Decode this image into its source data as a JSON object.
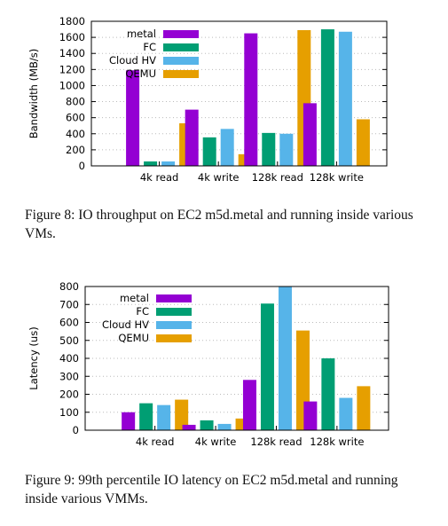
{
  "chart_data": [
    {
      "type": "bar",
      "ylabel": "Bandwidth (MB/s)",
      "xlabel": "",
      "ylim": [
        0,
        1800
      ],
      "yticks": [
        0,
        200,
        400,
        600,
        800,
        1000,
        1200,
        1400,
        1600,
        1800
      ],
      "categories": [
        "4k read",
        "4k write",
        "128k read",
        "128k write"
      ],
      "legend_position": "top-left",
      "grid": "horizontal dotted",
      "series": [
        {
          "name": "metal",
          "color": "#9400d3",
          "values": [
            1190,
            700,
            1650,
            780
          ]
        },
        {
          "name": "FC",
          "color": "#009e73",
          "values": [
            55,
            355,
            410,
            1700
          ]
        },
        {
          "name": "Cloud HV",
          "color": "#56b4e9",
          "values": [
            55,
            460,
            400,
            1670
          ]
        },
        {
          "name": "QEMU",
          "color": "#e69f00",
          "values": [
            530,
            145,
            1690,
            580
          ]
        }
      ]
    },
    {
      "type": "bar",
      "ylabel": "Latency (us)",
      "xlabel": "",
      "ylim": [
        0,
        800
      ],
      "yticks": [
        0,
        100,
        200,
        300,
        400,
        500,
        600,
        700,
        800
      ],
      "categories": [
        "4k read",
        "4k write",
        "128k read",
        "128k write"
      ],
      "legend_position": "top-left",
      "grid": "horizontal dotted",
      "series": [
        {
          "name": "metal",
          "color": "#9400d3",
          "values": [
            100,
            30,
            280,
            160
          ]
        },
        {
          "name": "FC",
          "color": "#009e73",
          "values": [
            150,
            55,
            705,
            400
          ]
        },
        {
          "name": "Cloud HV",
          "color": "#56b4e9",
          "values": [
            140,
            35,
            800,
            180
          ]
        },
        {
          "name": "QEMU",
          "color": "#e69f00",
          "values": [
            170,
            65,
            555,
            245
          ]
        }
      ]
    }
  ],
  "captions": {
    "fig8": "Figure 8: IO throughput on EC2 m5d.metal and running inside various VMs.",
    "fig9": "Figure 9: 99th percentile IO latency on EC2 m5d.metal and running inside various VMMs."
  }
}
